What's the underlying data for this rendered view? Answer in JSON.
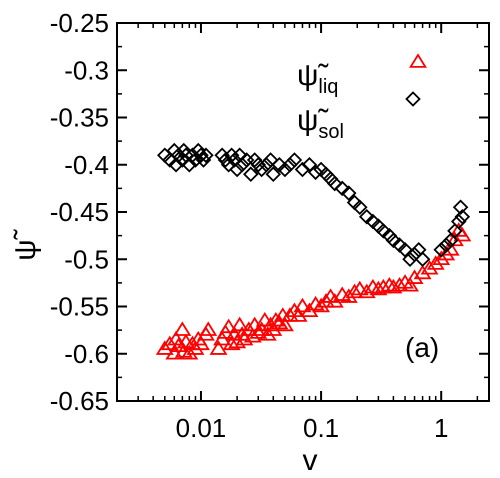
{
  "chart_data": {
    "type": "scatter",
    "title": "",
    "xlabel": "v",
    "ylabel": "ψ̃",
    "xscale": "log",
    "xlim": [
      0.002,
      2.5
    ],
    "ylim": [
      -0.65,
      -0.25
    ],
    "xticks": [
      {
        "value": 0.01,
        "label": "0.01"
      },
      {
        "value": 0.1,
        "label": "0.1"
      },
      {
        "value": 1,
        "label": "1"
      }
    ],
    "yticks": [
      {
        "value": -0.25,
        "label": "-0.25"
      },
      {
        "value": -0.3,
        "label": "-0.3"
      },
      {
        "value": -0.35,
        "label": "-0.35"
      },
      {
        "value": -0.4,
        "label": "-0.4"
      },
      {
        "value": -0.45,
        "label": "-0.45"
      },
      {
        "value": -0.5,
        "label": "-0.5"
      },
      {
        "value": -0.55,
        "label": "-0.55"
      },
      {
        "value": -0.6,
        "label": "-0.6"
      },
      {
        "value": -0.65,
        "label": "-0.65"
      }
    ],
    "grid": false,
    "legend_position": "top-right",
    "annotation": "(a)",
    "series": [
      {
        "name": "ψ̃liq",
        "legend_main": "ψ̃",
        "legend_sub": "liq",
        "color": "#ff0000",
        "marker": "triangle",
        "points": [
          [
            0.005,
            -0.595
          ],
          [
            0.0055,
            -0.59
          ],
          [
            0.006,
            -0.6
          ],
          [
            0.0062,
            -0.585
          ],
          [
            0.0065,
            -0.592
          ],
          [
            0.007,
            -0.575
          ],
          [
            0.0072,
            -0.598
          ],
          [
            0.0075,
            -0.588
          ],
          [
            0.008,
            -0.6
          ],
          [
            0.0085,
            -0.59
          ],
          [
            0.009,
            -0.595
          ],
          [
            0.0095,
            -0.585
          ],
          [
            0.01,
            -0.59
          ],
          [
            0.011,
            -0.58
          ],
          [
            0.0115,
            -0.575
          ],
          [
            0.014,
            -0.595
          ],
          [
            0.015,
            -0.585
          ],
          [
            0.016,
            -0.578
          ],
          [
            0.017,
            -0.572
          ],
          [
            0.018,
            -0.59
          ],
          [
            0.019,
            -0.58
          ],
          [
            0.02,
            -0.588
          ],
          [
            0.021,
            -0.57
          ],
          [
            0.022,
            -0.58
          ],
          [
            0.023,
            -0.585
          ],
          [
            0.025,
            -0.575
          ],
          [
            0.027,
            -0.582
          ],
          [
            0.028,
            -0.57
          ],
          [
            0.03,
            -0.578
          ],
          [
            0.032,
            -0.575
          ],
          [
            0.034,
            -0.565
          ],
          [
            0.036,
            -0.58
          ],
          [
            0.038,
            -0.57
          ],
          [
            0.04,
            -0.575
          ],
          [
            0.042,
            -0.565
          ],
          [
            0.045,
            -0.568
          ],
          [
            0.048,
            -0.56
          ],
          [
            0.05,
            -0.57
          ],
          [
            0.055,
            -0.56
          ],
          [
            0.06,
            -0.555
          ],
          [
            0.065,
            -0.56
          ],
          [
            0.07,
            -0.55
          ],
          [
            0.08,
            -0.555
          ],
          [
            0.09,
            -0.548
          ],
          [
            0.1,
            -0.55
          ],
          [
            0.11,
            -0.545
          ],
          [
            0.12,
            -0.54
          ],
          [
            0.13,
            -0.545
          ],
          [
            0.15,
            -0.538
          ],
          [
            0.17,
            -0.54
          ],
          [
            0.19,
            -0.535
          ],
          [
            0.21,
            -0.532
          ],
          [
            0.24,
            -0.535
          ],
          [
            0.27,
            -0.53
          ],
          [
            0.3,
            -0.532
          ],
          [
            0.33,
            -0.53
          ],
          [
            0.37,
            -0.528
          ],
          [
            0.4,
            -0.53
          ],
          [
            0.45,
            -0.528
          ],
          [
            0.5,
            -0.525
          ],
          [
            0.55,
            -0.528
          ],
          [
            0.6,
            -0.52
          ],
          [
            0.7,
            -0.515
          ],
          [
            0.8,
            -0.51
          ],
          [
            0.9,
            -0.505
          ],
          [
            1.0,
            -0.5
          ],
          [
            1.1,
            -0.495
          ],
          [
            1.2,
            -0.49
          ],
          [
            1.3,
            -0.48
          ],
          [
            1.4,
            -0.47
          ],
          [
            1.5,
            -0.475
          ]
        ]
      },
      {
        "name": "ψ̃sol",
        "legend_main": "ψ̃",
        "legend_sub": "sol",
        "color": "#000000",
        "marker": "diamond",
        "points": [
          [
            0.005,
            -0.39
          ],
          [
            0.0055,
            -0.395
          ],
          [
            0.006,
            -0.385
          ],
          [
            0.0062,
            -0.4
          ],
          [
            0.0065,
            -0.39
          ],
          [
            0.007,
            -0.395
          ],
          [
            0.0072,
            -0.385
          ],
          [
            0.0075,
            -0.39
          ],
          [
            0.008,
            -0.4
          ],
          [
            0.0085,
            -0.39
          ],
          [
            0.009,
            -0.395
          ],
          [
            0.0095,
            -0.385
          ],
          [
            0.01,
            -0.39
          ],
          [
            0.0105,
            -0.395
          ],
          [
            0.011,
            -0.39
          ],
          [
            0.015,
            -0.39
          ],
          [
            0.016,
            -0.395
          ],
          [
            0.017,
            -0.4
          ],
          [
            0.018,
            -0.39
          ],
          [
            0.019,
            -0.395
          ],
          [
            0.02,
            -0.405
          ],
          [
            0.021,
            -0.39
          ],
          [
            0.022,
            -0.4
          ],
          [
            0.024,
            -0.395
          ],
          [
            0.026,
            -0.41
          ],
          [
            0.028,
            -0.395
          ],
          [
            0.03,
            -0.4
          ],
          [
            0.032,
            -0.405
          ],
          [
            0.035,
            -0.4
          ],
          [
            0.038,
            -0.395
          ],
          [
            0.04,
            -0.41
          ],
          [
            0.045,
            -0.4
          ],
          [
            0.05,
            -0.405
          ],
          [
            0.055,
            -0.4
          ],
          [
            0.06,
            -0.395
          ],
          [
            0.07,
            -0.405
          ],
          [
            0.08,
            -0.4
          ],
          [
            0.09,
            -0.408
          ],
          [
            0.1,
            -0.405
          ],
          [
            0.11,
            -0.41
          ],
          [
            0.12,
            -0.415
          ],
          [
            0.13,
            -0.42
          ],
          [
            0.15,
            -0.425
          ],
          [
            0.17,
            -0.43
          ],
          [
            0.19,
            -0.44
          ],
          [
            0.21,
            -0.445
          ],
          [
            0.24,
            -0.455
          ],
          [
            0.27,
            -0.46
          ],
          [
            0.3,
            -0.465
          ],
          [
            0.33,
            -0.47
          ],
          [
            0.37,
            -0.475
          ],
          [
            0.4,
            -0.48
          ],
          [
            0.45,
            -0.485
          ],
          [
            0.5,
            -0.49
          ],
          [
            0.55,
            -0.5
          ],
          [
            0.6,
            -0.495
          ],
          [
            0.65,
            -0.49
          ],
          [
            0.7,
            -0.5
          ],
          [
            1.0,
            -0.49
          ],
          [
            1.1,
            -0.485
          ],
          [
            1.2,
            -0.48
          ],
          [
            1.3,
            -0.47
          ],
          [
            1.4,
            -0.46
          ],
          [
            1.45,
            -0.445
          ],
          [
            1.5,
            -0.455
          ]
        ]
      }
    ]
  }
}
